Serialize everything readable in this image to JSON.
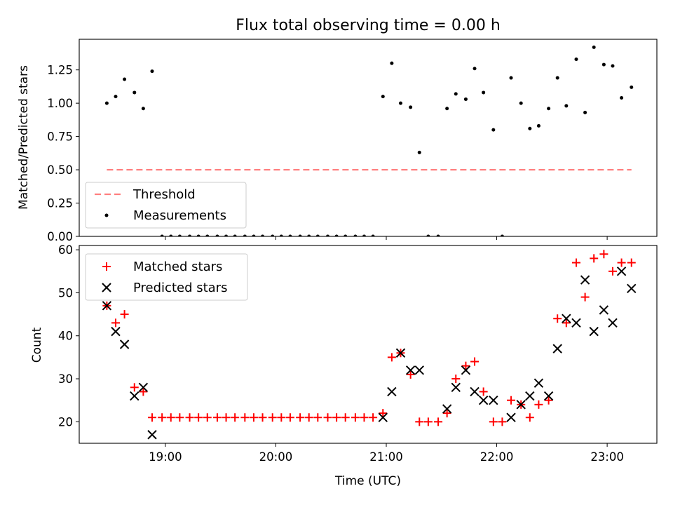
{
  "chart_data": [
    {
      "type": "scatter",
      "title": "Flux total observing time = 0.00 h",
      "xlabel": "",
      "ylabel": "Matched/Predicted stars",
      "xlim": [
        18.22,
        23.45
      ],
      "ylim": [
        0,
        1.48
      ],
      "yticks": [
        0,
        0.25,
        0.5,
        0.75,
        1.0,
        1.25
      ],
      "ytick_labels": [
        "0.00",
        "0.25",
        "0.50",
        "0.75",
        "1.00",
        "1.25"
      ],
      "xticks": [
        19,
        20,
        21,
        22,
        23
      ],
      "threshold": {
        "name": "Threshold",
        "value": 0.5,
        "x": [
          18.47,
          23.22
        ],
        "color": "#ff7f7f"
      },
      "series": [
        {
          "name": "Measurements",
          "color": "#000000",
          "x": [
            18.47,
            18.55,
            18.63,
            18.72,
            18.8,
            18.88,
            18.97,
            19.05,
            19.13,
            19.22,
            19.3,
            19.38,
            19.47,
            19.55,
            19.63,
            19.72,
            19.8,
            19.88,
            19.97,
            20.05,
            20.13,
            20.22,
            20.3,
            20.38,
            20.47,
            20.55,
            20.63,
            20.72,
            20.8,
            20.88,
            20.97,
            21.05,
            21.13,
            21.22,
            21.3,
            21.38,
            21.47,
            21.55,
            21.63,
            21.72,
            21.8,
            21.88,
            21.97,
            22.05,
            22.13,
            22.22,
            22.3,
            22.38,
            22.47,
            22.55,
            22.63,
            22.72,
            22.8,
            22.88,
            22.97,
            23.05,
            23.13,
            23.22
          ],
          "values": [
            1.0,
            1.05,
            1.18,
            1.08,
            0.96,
            1.24,
            0,
            0,
            0,
            0,
            0,
            0,
            0,
            0,
            0,
            0,
            0,
            0,
            0,
            0,
            0,
            0,
            0,
            0,
            0,
            0,
            0,
            0,
            0,
            0,
            1.05,
            1.3,
            1.0,
            0.97,
            0.63,
            0,
            0,
            0.96,
            1.07,
            1.03,
            1.26,
            1.08,
            0.8,
            0,
            1.19,
            1.0,
            0.81,
            0.83,
            0.96,
            1.19,
            0.98,
            1.33,
            0.93,
            1.42,
            1.29,
            1.28,
            1.04,
            1.12
          ]
        }
      ],
      "legend": "lower-left"
    },
    {
      "type": "scatter",
      "title": "",
      "xlabel": "Time (UTC)",
      "ylabel": "Count",
      "xlim": [
        18.22,
        23.45
      ],
      "ylim": [
        15,
        61
      ],
      "yticks": [
        20,
        30,
        40,
        50,
        60
      ],
      "ytick_labels": [
        "20",
        "30",
        "40",
        "50",
        "60"
      ],
      "xticks": [
        19,
        20,
        21,
        22,
        23
      ],
      "xtick_labels": [
        "19:00",
        "20:00",
        "21:00",
        "22:00",
        "23:00"
      ],
      "series": [
        {
          "name": "Matched stars",
          "marker": "+",
          "color": "#ff0000",
          "x": [
            18.47,
            18.55,
            18.63,
            18.72,
            18.8,
            18.88,
            18.97,
            19.05,
            19.13,
            19.22,
            19.3,
            19.38,
            19.47,
            19.55,
            19.63,
            19.72,
            19.8,
            19.88,
            19.97,
            20.05,
            20.13,
            20.22,
            20.3,
            20.38,
            20.47,
            20.55,
            20.63,
            20.72,
            20.8,
            20.88,
            20.97,
            21.05,
            21.13,
            21.22,
            21.3,
            21.38,
            21.47,
            21.55,
            21.63,
            21.72,
            21.8,
            21.88,
            21.97,
            22.05,
            22.13,
            22.22,
            22.3,
            22.38,
            22.47,
            22.55,
            22.63,
            22.72,
            22.8,
            22.88,
            22.97,
            23.05,
            23.13,
            23.22
          ],
          "values": [
            47,
            43,
            45,
            28,
            27,
            21,
            21,
            21,
            21,
            21,
            21,
            21,
            21,
            21,
            21,
            21,
            21,
            21,
            21,
            21,
            21,
            21,
            21,
            21,
            21,
            21,
            21,
            21,
            21,
            21,
            22,
            35,
            36,
            31,
            20,
            20,
            20,
            22,
            30,
            33,
            34,
            27,
            20,
            20,
            25,
            24,
            21,
            24,
            25,
            44,
            43,
            57,
            49,
            58,
            59,
            55,
            57,
            57
          ]
        },
        {
          "name": "Predicted stars",
          "marker": "x",
          "color": "#000000",
          "x": [
            18.47,
            18.55,
            18.63,
            18.72,
            18.8,
            18.88,
            20.97,
            21.05,
            21.13,
            21.22,
            21.3,
            21.55,
            21.63,
            21.72,
            21.8,
            21.88,
            21.97,
            22.13,
            22.22,
            22.3,
            22.38,
            22.47,
            22.55,
            22.63,
            22.72,
            22.8,
            22.88,
            22.97,
            23.05,
            23.13,
            23.22
          ],
          "values": [
            47,
            41,
            38,
            26,
            28,
            17,
            21,
            27,
            36,
            32,
            32,
            23,
            28,
            32,
            27,
            25,
            25,
            21,
            24,
            26,
            29,
            26,
            37,
            44,
            43,
            53,
            41,
            46,
            43,
            55,
            51
          ]
        }
      ],
      "legend": "upper-left"
    }
  ]
}
